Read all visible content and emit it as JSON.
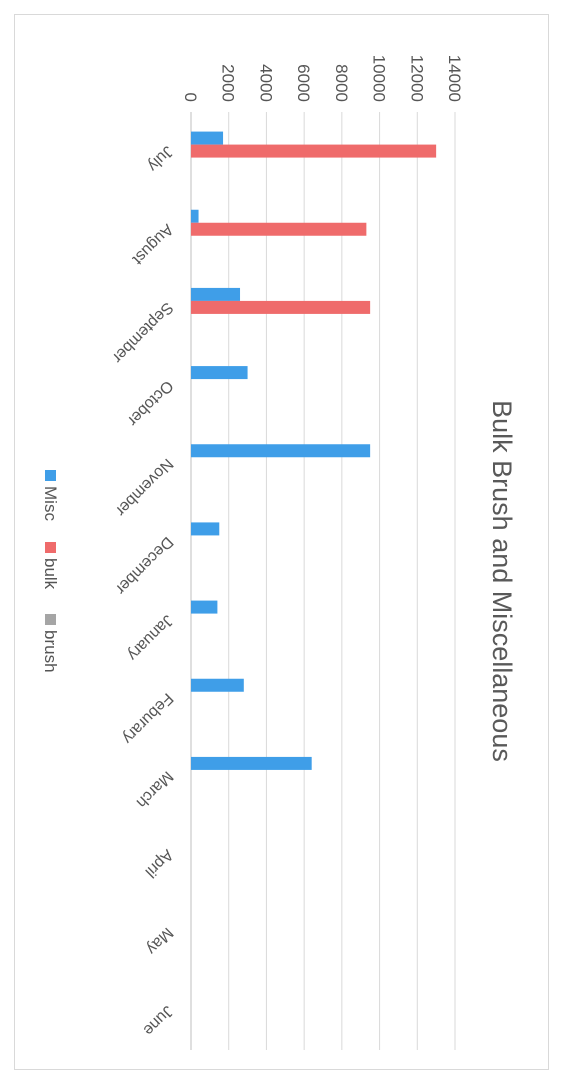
{
  "chart_data": {
    "type": "bar",
    "orientation": "vertical",
    "title": "Bulk Brush and Miscellaneous",
    "categories": [
      "July",
      "August",
      "September",
      "October",
      "November",
      "December",
      "January",
      "Feburary",
      "March",
      "April",
      "May",
      "June"
    ],
    "series": [
      {
        "name": "Misc",
        "color": "#3f9ee8",
        "values": [
          1700,
          400,
          2600,
          3000,
          9500,
          1500,
          1400,
          2800,
          6400,
          0,
          0,
          0
        ]
      },
      {
        "name": "bulk",
        "color": "#ef6b6b",
        "values": [
          13000,
          9300,
          9500,
          0,
          0,
          0,
          0,
          0,
          0,
          0,
          0,
          0
        ]
      },
      {
        "name": "brush",
        "color": "#a5a5a5",
        "values": [
          0,
          0,
          0,
          0,
          0,
          0,
          0,
          0,
          0,
          0,
          0,
          0
        ]
      }
    ],
    "yticks": [
      "0",
      "2000",
      "4000",
      "6000",
      "8000",
      "10000",
      "12000",
      "14000"
    ],
    "ylim": [
      0,
      14000
    ],
    "grid": true,
    "legend_position": "bottom",
    "xlabel": "",
    "ylabel": ""
  }
}
